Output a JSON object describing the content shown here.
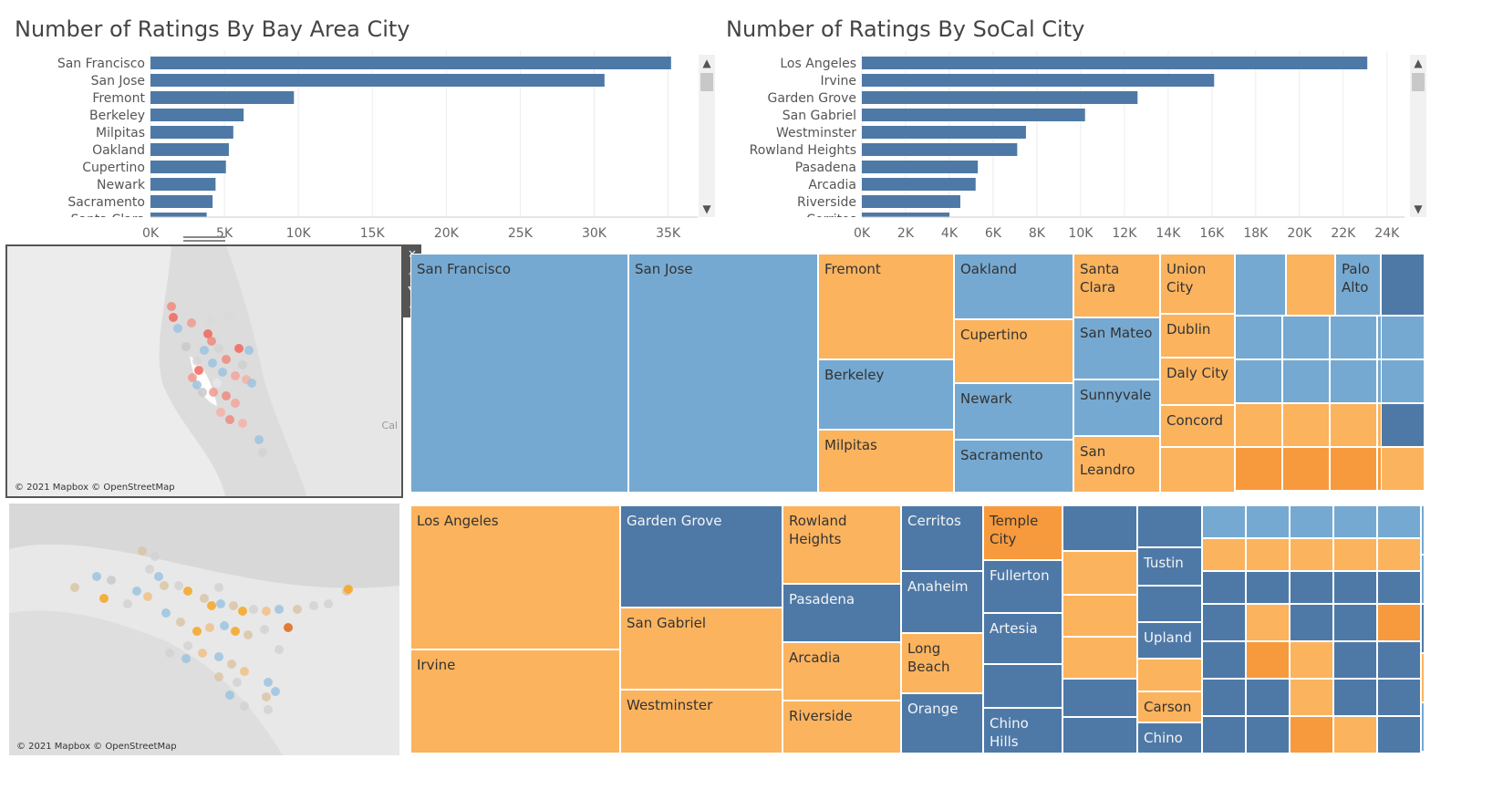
{
  "colors": {
    "bar": "#4e79a7",
    "tile_blue": "#76a9d1",
    "tile_blue_dark": "#4e79a7",
    "tile_orange": "#fbb35e",
    "tile_orange_dark": "#f79a3d",
    "axis": "#666666",
    "map_bg": "#e3e3e3"
  },
  "charts": [
    {
      "chart_data": {
        "type": "bar",
        "orientation": "horizontal",
        "title": "Number of Ratings By Bay Area City",
        "categories": [
          "San Francisco",
          "San Jose",
          "Fremont",
          "Berkeley",
          "Milpitas",
          "Oakland",
          "Cupertino",
          "Newark",
          "Sacramento",
          "Santa Clara"
        ],
        "values": [
          35200,
          30700,
          9700,
          6300,
          5600,
          5300,
          5100,
          4400,
          4200,
          3800
        ],
        "xlim": [
          0,
          37000
        ],
        "xticks": [
          "0K",
          "5K",
          "10K",
          "15K",
          "20K",
          "25K",
          "30K",
          "35K"
        ],
        "xtick_values": [
          0,
          5000,
          10000,
          15000,
          20000,
          25000,
          30000,
          35000
        ],
        "grid": true
      }
    },
    {
      "chart_data": {
        "type": "bar",
        "orientation": "horizontal",
        "title": "Number of Ratings By SoCal City",
        "categories": [
          "Los Angeles",
          "Irvine",
          "Garden Grove",
          "San Gabriel",
          "Westminster",
          "Rowland Heights",
          "Pasadena",
          "Arcadia",
          "Riverside",
          "Cerritos"
        ],
        "values": [
          23100,
          16100,
          12600,
          10200,
          7500,
          7100,
          5300,
          5200,
          4500,
          4000
        ],
        "xlim": [
          0,
          24800
        ],
        "xticks": [
          "0K",
          "2K",
          "4K",
          "6K",
          "8K",
          "10K",
          "12K",
          "14K",
          "16K",
          "18K",
          "20K",
          "22K",
          "24K"
        ],
        "xtick_values": [
          0,
          2000,
          4000,
          6000,
          8000,
          10000,
          12000,
          14000,
          16000,
          18000,
          20000,
          22000,
          24000
        ],
        "grid": true
      }
    }
  ],
  "map_bay": {
    "credit": "© 2021 Mapbox © OpenStreetMap",
    "label": "Cal"
  },
  "map_socal": {
    "credit": "© 2021 Mapbox © OpenStreetMap"
  },
  "map_toolbar": {
    "close_icon": "×",
    "popout_icon": "⇗",
    "filter_icon": "⛛",
    "dropdown_icon": "▾"
  },
  "scroll": {
    "up": "▲",
    "down": "▼"
  },
  "treemap_bay_labels": {
    "san_francisco": "San Francisco",
    "san_jose": "San Jose",
    "fremont": "Fremont",
    "berkeley": "Berkeley",
    "milpitas": "Milpitas",
    "oakland": "Oakland",
    "cupertino": "Cupertino",
    "newark": "Newark",
    "sacramento": "Sacramento",
    "santa_clara": "Santa Clara",
    "san_mateo": "San Mateo",
    "sunnyvale": "Sunnyvale",
    "san_leandro": "San Leandro",
    "union_city": "Union City",
    "dublin": "Dublin",
    "daly_city": "Daly City",
    "concord": "Concord",
    "palo_alto": "Palo Alto"
  },
  "treemap_socal_labels": {
    "los_angeles": "Los Angeles",
    "irvine": "Irvine",
    "garden_grove": "Garden Grove",
    "san_gabriel": "San Gabriel",
    "westminster": "Westminster",
    "rowland_heights": "Rowland Heights",
    "pasadena": "Pasadena",
    "arcadia": "Arcadia",
    "riverside": "Riverside",
    "cerritos": "Cerritos",
    "anaheim": "Anaheim",
    "long_beach": "Long Beach",
    "orange": "Orange",
    "temple_city": "Temple City",
    "fullerton": "Fullerton",
    "artesia": "Artesia",
    "chino_hills": "Chino Hills",
    "tustin": "Tustin",
    "upland": "Upland",
    "carson": "Carson",
    "chino": "Chino"
  }
}
